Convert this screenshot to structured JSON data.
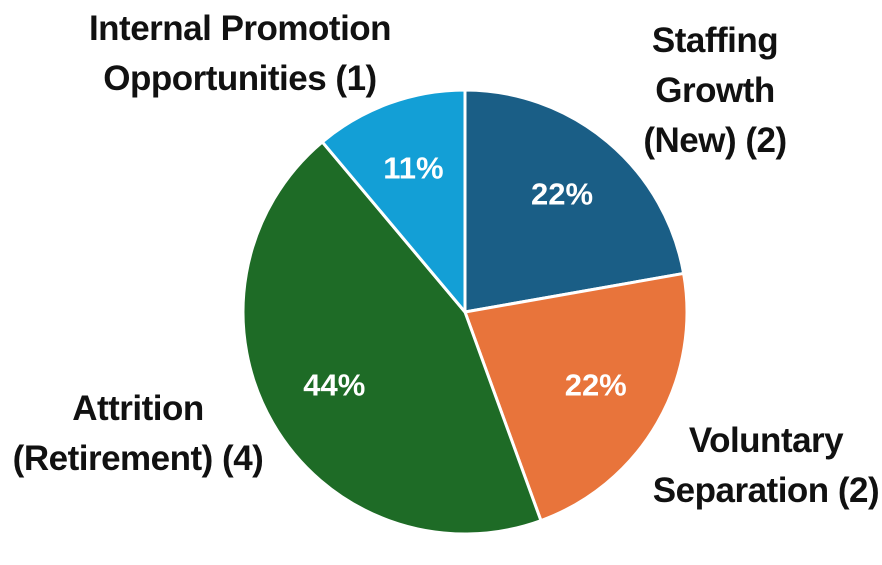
{
  "chart_data": {
    "type": "pie",
    "categories": [
      "Staffing Growth (New) (2)",
      "Voluntary Separation (2)",
      "Attrition (Retirement) (4)",
      "Internal Promotion Opportunities (1)"
    ],
    "values": [
      22,
      22,
      44,
      11
    ],
    "value_labels": [
      "22%",
      "22%",
      "44%",
      "11%"
    ],
    "colors": [
      "#1a5e86",
      "#e8743b",
      "#1e6b26",
      "#139fd6"
    ]
  }
}
